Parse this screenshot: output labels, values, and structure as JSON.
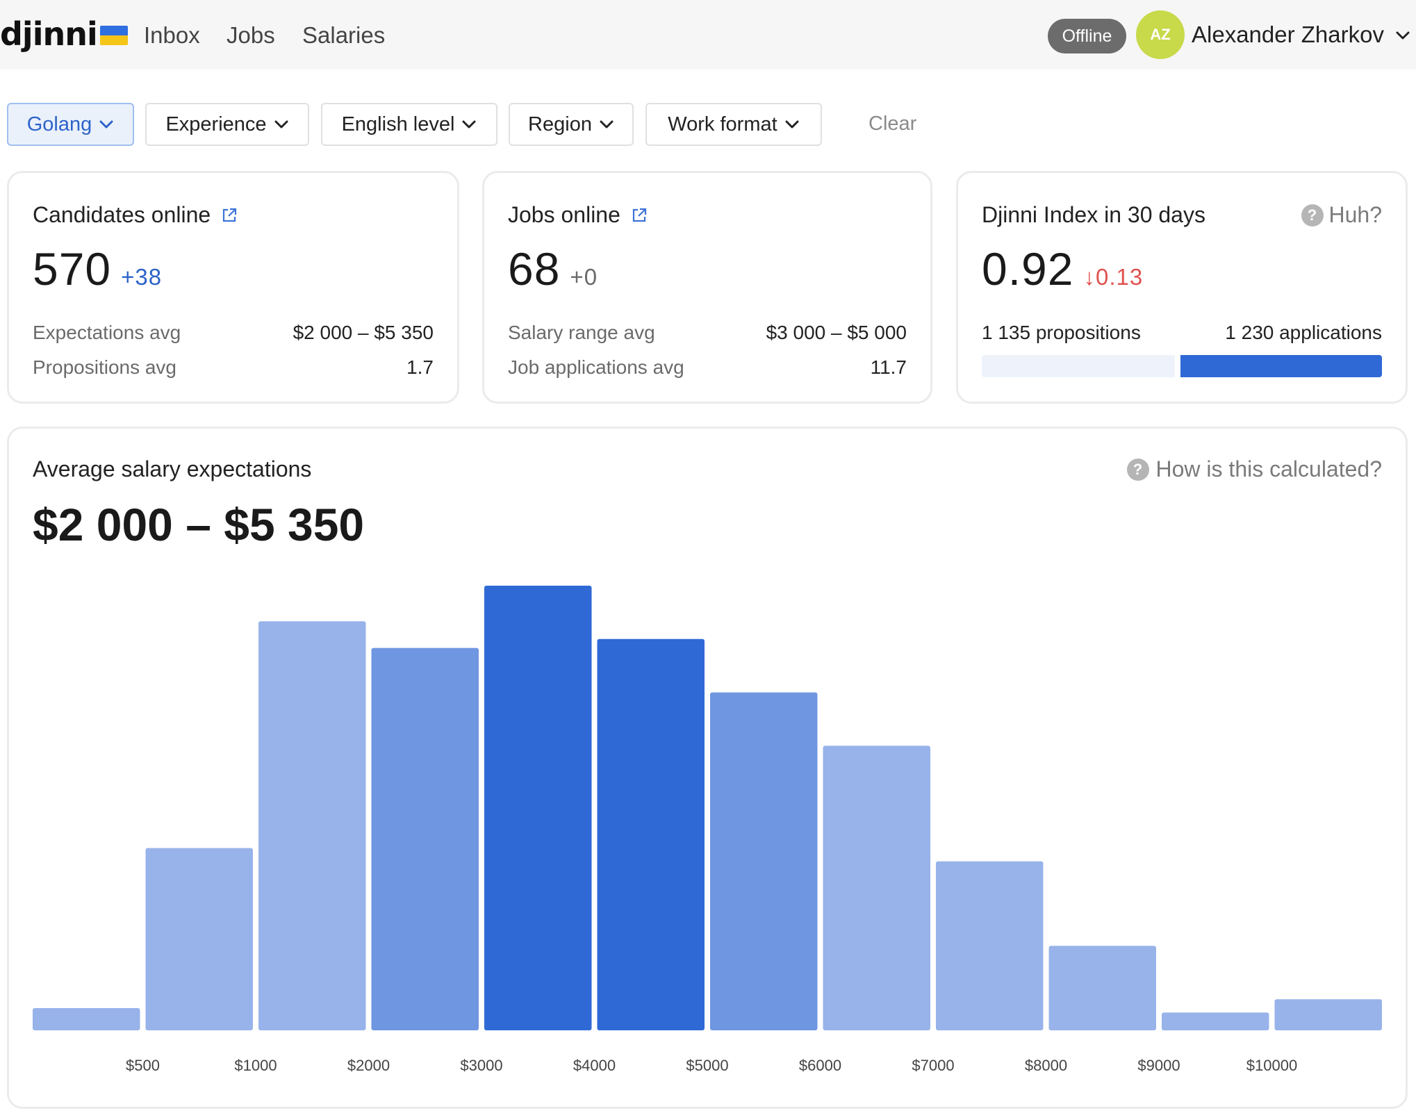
{
  "nav": {
    "logo": "djinni",
    "links": [
      "Inbox",
      "Jobs",
      "Salaries"
    ],
    "status": "Offline",
    "avatar_initials": "AZ",
    "user_name": "Alexander Zharkov"
  },
  "filters": {
    "items": [
      "Golang",
      "Experience",
      "English level",
      "Region",
      "Work format"
    ],
    "active": "Golang",
    "clear": "Clear"
  },
  "candidates": {
    "title": "Candidates online",
    "value": "570",
    "delta": "+38",
    "rows": [
      {
        "label": "Expectations avg",
        "value": "$2 000 – $5 350"
      },
      {
        "label": "Propositions avg",
        "value": "1.7"
      }
    ]
  },
  "jobs": {
    "title": "Jobs online",
    "value": "68",
    "delta": "+0",
    "rows": [
      {
        "label": "Salary range avg",
        "value": "$3 000 – $5 000"
      },
      {
        "label": "Job applications avg",
        "value": "11.7"
      }
    ]
  },
  "index": {
    "title": "Djinni Index in 30 days",
    "help": "Huh?",
    "value": "0.92",
    "delta": "↓0.13",
    "propositions": "1 135 propositions",
    "applications": "1 230 applications",
    "propositions_count": 1135,
    "applications_count": 1230
  },
  "salary": {
    "title": "Average salary expectations",
    "range": "$2 000 – $5 350",
    "help": "How is this calculated?"
  },
  "colors": {
    "light": "#98b3ea",
    "mid": "#6f96e0",
    "dark": "#2f69d6",
    "accent_blue": "#2d63c8",
    "negative": "#e0524f"
  },
  "chart_data": {
    "type": "bar",
    "title": "Average salary expectations",
    "tick_labels": [
      "$500",
      "$1000",
      "$2000",
      "$3000",
      "$4000",
      "$5000",
      "$6000",
      "$7000",
      "$8000",
      "$9000",
      "$10000"
    ],
    "values": [
      5,
      41,
      92,
      86,
      100,
      88,
      76,
      64,
      38,
      19,
      4,
      7
    ],
    "shades": [
      "light",
      "light",
      "light",
      "mid",
      "dark",
      "dark",
      "mid",
      "light",
      "light",
      "light",
      "light",
      "light"
    ],
    "ylim": [
      0,
      100
    ],
    "grid": false,
    "legend": "none"
  }
}
